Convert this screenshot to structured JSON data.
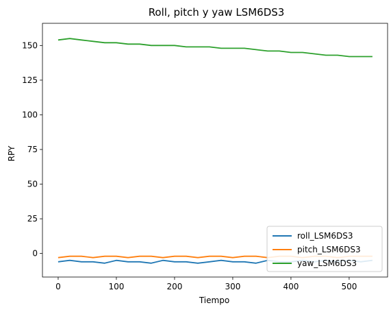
{
  "chart_data": {
    "type": "line",
    "title": "Roll, pitch y yaw LSM6DS3",
    "xlabel": "Tiempo",
    "ylabel": "RPY",
    "xlim": [
      -27,
      566
    ],
    "ylim": [
      -17,
      166
    ],
    "xticks": [
      0,
      100,
      200,
      300,
      400,
      500
    ],
    "yticks": [
      0,
      25,
      50,
      75,
      100,
      125,
      150
    ],
    "grid": false,
    "legend_position": "lower-right",
    "series": [
      {
        "name": "roll_LSM6DS3",
        "color": "#1f77b4",
        "x": [
          0,
          20,
          40,
          60,
          80,
          100,
          120,
          140,
          160,
          180,
          200,
          220,
          240,
          260,
          280,
          300,
          320,
          340,
          360,
          380,
          400,
          420,
          440,
          460,
          480,
          500,
          520,
          540
        ],
        "y": [
          -6,
          -5,
          -6,
          -6,
          -7,
          -5,
          -6,
          -6,
          -7,
          -5,
          -6,
          -6,
          -7,
          -6,
          -5,
          -6,
          -6,
          -7,
          -5,
          -6,
          -6,
          -5,
          -6,
          -5,
          -6,
          -5,
          -6,
          -5
        ]
      },
      {
        "name": "pitch_LSM6DS3",
        "color": "#ff7f0e",
        "x": [
          0,
          20,
          40,
          60,
          80,
          100,
          120,
          140,
          160,
          180,
          200,
          220,
          240,
          260,
          280,
          300,
          320,
          340,
          360,
          380,
          400,
          420,
          440,
          460,
          480,
          500,
          520,
          540
        ],
        "y": [
          -3,
          -2,
          -2,
          -3,
          -2,
          -2,
          -3,
          -2,
          -2,
          -3,
          -2,
          -2,
          -3,
          -2,
          -2,
          -3,
          -2,
          -2,
          -3,
          -2,
          -2,
          -3,
          -2,
          -2,
          -3,
          -2,
          -2,
          -2
        ]
      },
      {
        "name": "yaw_LSM6DS3",
        "color": "#2ca02c",
        "x": [
          0,
          20,
          40,
          60,
          80,
          100,
          120,
          140,
          160,
          180,
          200,
          220,
          240,
          260,
          280,
          300,
          320,
          340,
          360,
          380,
          400,
          420,
          440,
          460,
          480,
          500,
          520,
          540
        ],
        "y": [
          154,
          155,
          154,
          153,
          152,
          152,
          151,
          151,
          150,
          150,
          150,
          149,
          149,
          149,
          148,
          148,
          148,
          147,
          146,
          146,
          145,
          145,
          144,
          143,
          143,
          142,
          142,
          142
        ]
      }
    ]
  }
}
